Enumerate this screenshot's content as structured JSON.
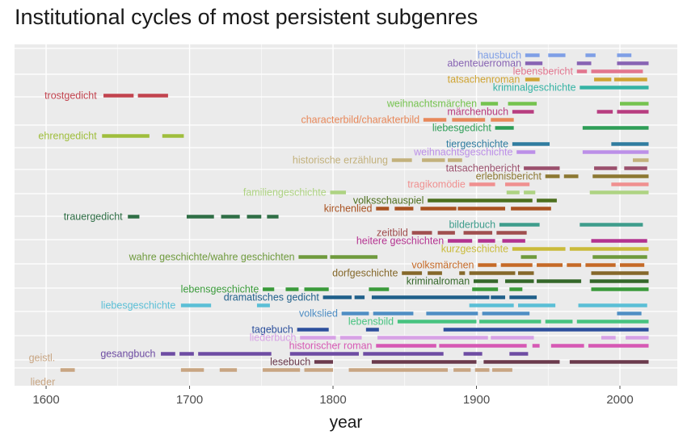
{
  "chart_data": {
    "type": "timeline",
    "title": "Institutional cycles of most persistent subgenres",
    "xlabel": "year",
    "ylabel": "",
    "xlim": [
      1578,
      2040
    ],
    "x_ticks": [
      1600,
      1700,
      1800,
      1900,
      2000
    ],
    "grid": true,
    "legend": "none",
    "series": [
      {
        "name": "hausbuch",
        "color": "#7f9fe6",
        "segments": [
          [
            1934,
            1944
          ],
          [
            1950,
            1962
          ],
          [
            1976,
            1983
          ],
          [
            1998,
            2008
          ]
        ]
      },
      {
        "name": "abenteuerroman",
        "color": "#8763b3",
        "segments": [
          [
            1934,
            1946
          ],
          [
            1970,
            1980
          ],
          [
            1998,
            2020
          ]
        ]
      },
      {
        "name": "lebensbericht",
        "color": "#e2768f",
        "segments": [
          [
            1970,
            1977
          ],
          [
            1980,
            2016
          ]
        ]
      },
      {
        "name": "tatsachenroman",
        "color": "#cfa432",
        "segments": [
          [
            1934,
            1944
          ],
          [
            1982,
            1994
          ],
          [
            1996,
            2019
          ]
        ]
      },
      {
        "name": "kriminalgeschichte",
        "color": "#34b3a4",
        "segments": [
          [
            1972,
            2020
          ]
        ]
      },
      {
        "name": "trostgedicht",
        "color": "#c2434e",
        "segments": [
          [
            1640,
            1661
          ],
          [
            1664,
            1685
          ]
        ]
      },
      {
        "name": "weihnachtsmärchen",
        "color": "#75c34f",
        "segments": [
          [
            1903,
            1915
          ],
          [
            1922,
            1942
          ],
          [
            2000,
            2020
          ]
        ]
      },
      {
        "name": "märchenbuch",
        "color": "#b83d80",
        "segments": [
          [
            1925,
            1940
          ],
          [
            1984,
            1995
          ],
          [
            1998,
            2020
          ]
        ]
      },
      {
        "name": "characterbild/charakterbild",
        "color": "#e8885a",
        "segments": [
          [
            1863,
            1879
          ],
          [
            1883,
            1906
          ],
          [
            1910,
            1926
          ]
        ]
      },
      {
        "name": "liebesgedicht",
        "color": "#2e9e57",
        "segments": [
          [
            1913,
            1926
          ],
          [
            1974,
            2020
          ]
        ]
      },
      {
        "name": "ehrengedicht",
        "color": "#9fbe3c",
        "segments": [
          [
            1639,
            1672
          ],
          [
            1681,
            1696
          ]
        ]
      },
      {
        "name": "tiergeschichte",
        "color": "#2f7ca0",
        "segments": [
          [
            1925,
            1951
          ],
          [
            1994,
            2020
          ]
        ]
      },
      {
        "name": "weihnachtsgeschichte",
        "color": "#bc8fe8",
        "segments": [
          [
            1928,
            1941
          ],
          [
            1974,
            2020
          ]
        ]
      },
      {
        "name": "historische erzählung",
        "color": "#c3b17c",
        "segments": [
          [
            1841,
            1855
          ],
          [
            1862,
            1878
          ],
          [
            1880,
            1890
          ],
          [
            2009,
            2020
          ]
        ]
      },
      {
        "name": "tatsachenbericht",
        "color": "#9a4f6c",
        "segments": [
          [
            1933,
            1958
          ],
          [
            1982,
            1998
          ],
          [
            2003,
            2019
          ]
        ]
      },
      {
        "name": "erlebnisbericht",
        "color": "#8c7832",
        "segments": [
          [
            1948,
            1958
          ],
          [
            1961,
            1971
          ],
          [
            1981,
            2020
          ]
        ]
      },
      {
        "name": "tragikomödie",
        "color": "#f09090",
        "segments": [
          [
            1895,
            1913
          ],
          [
            1920,
            1937
          ],
          [
            1994,
            2020
          ]
        ]
      },
      {
        "name": "familiengeschichte",
        "color": "#aed382",
        "segments": [
          [
            1798,
            1809
          ],
          [
            1921,
            1930
          ],
          [
            1933,
            1941
          ],
          [
            1979,
            2020
          ]
        ]
      },
      {
        "name": "volksschauspiel",
        "color": "#4d6f1e",
        "segments": [
          [
            1866,
            1939
          ],
          [
            1942,
            1956
          ]
        ]
      },
      {
        "name": "kirchenlied",
        "color": "#a95221",
        "segments": [
          [
            1830,
            1839
          ],
          [
            1843,
            1856
          ],
          [
            1861,
            1886
          ],
          [
            1887,
            1920
          ],
          [
            1924,
            1952
          ]
        ]
      },
      {
        "name": "trauergedicht",
        "color": "#2e6e45",
        "segments": [
          [
            1657,
            1665
          ],
          [
            1698,
            1717
          ],
          [
            1722,
            1735
          ],
          [
            1740,
            1750
          ],
          [
            1754,
            1762
          ]
        ]
      },
      {
        "name": "bilderbuch",
        "color": "#3e9d8c",
        "segments": [
          [
            1916,
            1944
          ],
          [
            1972,
            2016
          ]
        ]
      },
      {
        "name": "zeitbild",
        "color": "#a04e4e",
        "segments": [
          [
            1855,
            1869
          ],
          [
            1873,
            1885
          ],
          [
            1891,
            1911
          ],
          [
            1914,
            1935
          ]
        ]
      },
      {
        "name": "heitere geschichten",
        "color": "#b3328f",
        "segments": [
          [
            1880,
            1897
          ],
          [
            1901,
            1913
          ],
          [
            1918,
            1934
          ],
          [
            1980,
            2019
          ]
        ]
      },
      {
        "name": "kurzgeschichte",
        "color": "#cabb3a",
        "segments": [
          [
            1925,
            1962
          ],
          [
            1965,
            2020
          ]
        ]
      },
      {
        "name": "wahre geschichte/wahre geschichten",
        "color": "#6e9a3c",
        "segments": [
          [
            1776,
            1796
          ],
          [
            1798,
            1831
          ],
          [
            1931,
            1942
          ],
          [
            1981,
            2019
          ]
        ]
      },
      {
        "name": "volksmärchen",
        "color": "#c56a27",
        "segments": [
          [
            1901,
            1914
          ],
          [
            1917,
            1939
          ],
          [
            1942,
            1960
          ],
          [
            1963,
            1973
          ],
          [
            1976,
            1997
          ],
          [
            2000,
            2017
          ]
        ]
      },
      {
        "name": "dorfgeschichte",
        "color": "#85682a",
        "segments": [
          [
            1848,
            1862
          ],
          [
            1866,
            1876
          ],
          [
            1888,
            1892
          ],
          [
            1895,
            1927
          ],
          [
            1929,
            1940
          ],
          [
            1980,
            2020
          ]
        ]
      },
      {
        "name": "kriminalroman",
        "color": "#35682a",
        "segments": [
          [
            1898,
            1915
          ],
          [
            1920,
            1940
          ],
          [
            1942,
            1973
          ],
          [
            1979,
            2020
          ]
        ]
      },
      {
        "name": "lebensgeschichte",
        "color": "#3a9a3a",
        "segments": [
          [
            1751,
            1759
          ],
          [
            1767,
            1776
          ],
          [
            1780,
            1797
          ],
          [
            1825,
            1839
          ],
          [
            1897,
            1915
          ],
          [
            1923,
            1932
          ],
          [
            1980,
            2020
          ]
        ]
      },
      {
        "name": "dramatisches gedicht",
        "color": "#1f5f8a",
        "segments": [
          [
            1793,
            1813
          ],
          [
            1815,
            1822
          ],
          [
            1827,
            1909
          ],
          [
            1910,
            1920
          ],
          [
            1923,
            1942
          ]
        ]
      },
      {
        "name": "liebesgeschichte",
        "color": "#5bbfd6",
        "segments": [
          [
            1694,
            1715
          ],
          [
            1747,
            1756
          ],
          [
            1895,
            1926
          ],
          [
            1929,
            1955
          ],
          [
            1971,
            2019
          ]
        ]
      },
      {
        "name": "volkslied",
        "color": "#4f8ec4",
        "segments": [
          [
            1806,
            1825
          ],
          [
            1828,
            1856
          ],
          [
            1865,
            1901
          ],
          [
            1904,
            1937
          ],
          [
            1998,
            2015
          ]
        ]
      },
      {
        "name": "lebensbild",
        "color": "#47c380",
        "segments": [
          [
            1845,
            1900
          ],
          [
            1902,
            1945
          ],
          [
            1948,
            1967
          ],
          [
            1970,
            2020
          ]
        ]
      },
      {
        "name": "tagebuch",
        "color": "#2c4f9c",
        "segments": [
          [
            1775,
            1797
          ],
          [
            1823,
            1832
          ],
          [
            1877,
            2020
          ]
        ]
      },
      {
        "name": "liederbuch",
        "color": "#d7a1e5",
        "segments": [
          [
            1777,
            1802
          ],
          [
            1805,
            1820
          ],
          [
            1831,
            1908
          ],
          [
            1910,
            1940
          ],
          [
            1987,
            1997
          ],
          [
            2004,
            2020
          ]
        ]
      },
      {
        "name": "historischer roman",
        "color": "#d658b4",
        "segments": [
          [
            1830,
            1872
          ],
          [
            1874,
            1935
          ],
          [
            1939,
            1944
          ],
          [
            1952,
            1975
          ],
          [
            1978,
            2020
          ]
        ]
      },
      {
        "name": "gesangbuch",
        "color": "#6e4ca3",
        "segments": [
          [
            1680,
            1690
          ],
          [
            1693,
            1703
          ],
          [
            1706,
            1757
          ],
          [
            1770,
            1818
          ],
          [
            1821,
            1877
          ],
          [
            1891,
            1904
          ],
          [
            1923,
            1936
          ]
        ]
      },
      {
        "name": "lesebuch",
        "color": "#6b3a4c",
        "segments": [
          [
            1787,
            1800
          ],
          [
            1827,
            1900
          ],
          [
            1905,
            1958
          ],
          [
            1965,
            2020
          ]
        ]
      },
      {
        "name": "geistl. lieder",
        "color": "#c8a582",
        "segments": [
          [
            1610,
            1620
          ],
          [
            1694,
            1710
          ],
          [
            1721,
            1733
          ],
          [
            1751,
            1777
          ],
          [
            1780,
            1800
          ],
          [
            1811,
            1880
          ],
          [
            1884,
            1896
          ],
          [
            1899,
            1909
          ],
          [
            1911,
            1925
          ]
        ]
      }
    ],
    "labels": [
      {
        "text": "hausbuch",
        "series": 0,
        "x": 1933
      },
      {
        "text": "abenteuerroman",
        "series": 1,
        "x": 1933
      },
      {
        "text": "lebensbericht",
        "series": 2,
        "x": 1969
      },
      {
        "text": "tatsachenroman",
        "series": 3,
        "x": 1932
      },
      {
        "text": "kriminalgeschichte",
        "series": 4,
        "x": 1971
      },
      {
        "text": "trostgedicht",
        "series": 5,
        "x": 1637
      },
      {
        "text": "weihnachtsmärchen",
        "series": 6,
        "x": 1902
      },
      {
        "text": "märchenbuch",
        "series": 7,
        "x": 1924
      },
      {
        "text": "characterbild/charakterbild",
        "series": 8,
        "x": 1862
      },
      {
        "text": "liebesgedicht",
        "series": 9,
        "x": 1912
      },
      {
        "text": "ehrengedicht",
        "series": 10,
        "x": 1637
      },
      {
        "text": "tiergeschichte",
        "series": 11,
        "x": 1924
      },
      {
        "text": "weihnachtsgeschichte",
        "series": 12,
        "x": 1927
      },
      {
        "text": "historische erzählung",
        "series": 13,
        "x": 1840
      },
      {
        "text": "tatsachenbericht",
        "series": 14,
        "x": 1932
      },
      {
        "text": "erlebnisbericht",
        "series": 15,
        "x": 1947
      },
      {
        "text": "tragikomödie",
        "series": 16,
        "x": 1894
      },
      {
        "text": "familiengeschichte",
        "series": 17,
        "x": 1797
      },
      {
        "text": "volksschauspiel",
        "series": 18,
        "x": 1865
      },
      {
        "text": "kirchenlied",
        "series": 19,
        "x": 1829
      },
      {
        "text": "trauergedicht",
        "series": 20,
        "x": 1655
      },
      {
        "text": "bilderbuch",
        "series": 21,
        "x": 1915
      },
      {
        "text": "zeitbild",
        "series": 22,
        "x": 1854
      },
      {
        "text": "heitere geschichten",
        "series": 23,
        "x": 1879
      },
      {
        "text": "kurzgeschichte",
        "series": 24,
        "x": 1924
      },
      {
        "text": "wahre geschichte/wahre geschichten",
        "series": 25,
        "x": 1775
      },
      {
        "text": "volksmärchen",
        "series": 26,
        "x": 1900
      },
      {
        "text": "dorfgeschichte",
        "series": 27,
        "x": 1847
      },
      {
        "text": "kriminalroman",
        "series": 28,
        "x": 1897
      },
      {
        "text": "lebensgeschichte",
        "series": 29,
        "x": 1750
      },
      {
        "text": "dramatisches gedicht",
        "series": 30,
        "x": 1792
      },
      {
        "text": "liebesgeschichte",
        "series": 31,
        "x": 1692
      },
      {
        "text": "volkslied",
        "series": 32,
        "x": 1805
      },
      {
        "text": "lebensbild",
        "series": 33,
        "x": 1844
      },
      {
        "text": "tagebuch",
        "series": 34,
        "x": 1774
      },
      {
        "text": "liederbuch",
        "series": 35,
        "x": 1776
      },
      {
        "text": "historischer roman",
        "series": 36,
        "x": 1829
      },
      {
        "text": "gesangbuch",
        "series": 37,
        "x": 1678
      },
      {
        "text": "lesebuch",
        "series": 38,
        "x": 1786
      },
      {
        "text": "geistl.",
        "series": 39,
        "x": 1608,
        "row_offset": -1.5
      },
      {
        "text": "lieder",
        "series": 39,
        "x": 1608,
        "row_offset": 1.5
      }
    ]
  }
}
